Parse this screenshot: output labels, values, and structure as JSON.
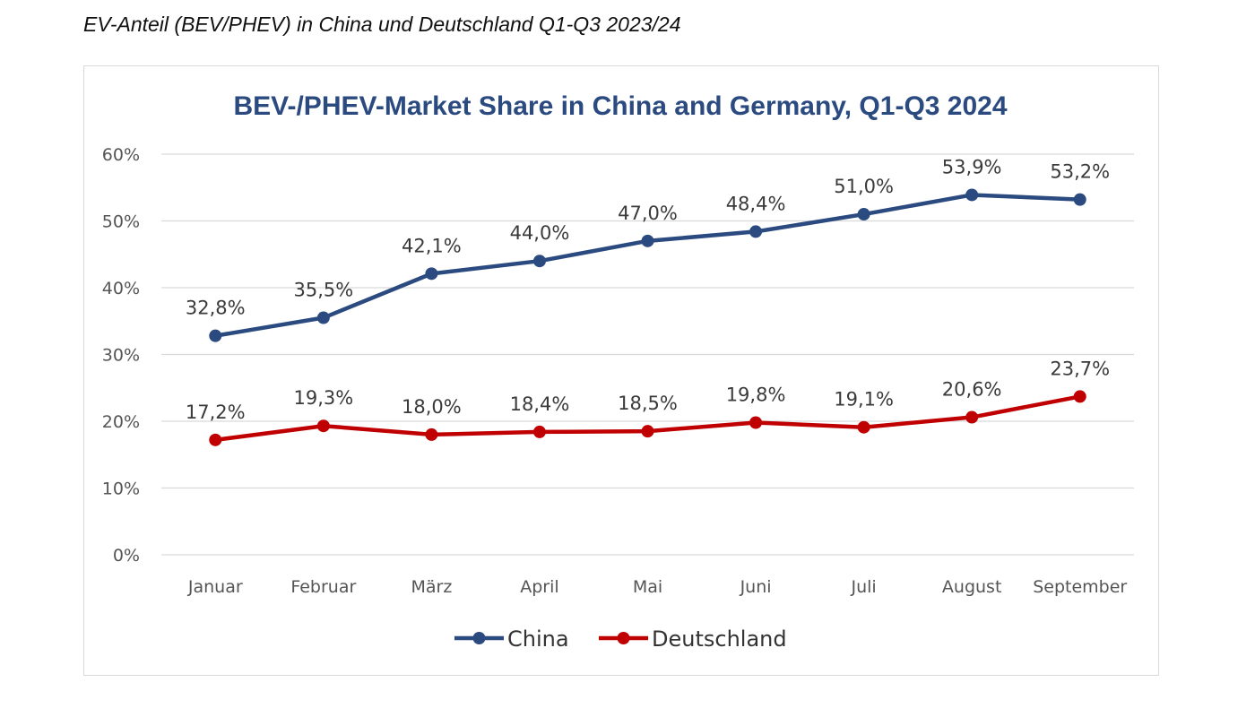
{
  "caption": "EV-Anteil (BEV/PHEV) in China und Deutschland Q1-Q3 2023/24",
  "colors": {
    "china": "#2a4a80",
    "deutschland": "#c00000",
    "grid": "#d9d9d9",
    "title": "#2a4a80"
  },
  "chart_data": {
    "type": "line",
    "title": "BEV-/PHEV-Market Share in China and Germany, Q1-Q3 2024",
    "xlabel": "",
    "ylabel": "",
    "categories": [
      "Januar",
      "Februar",
      "März",
      "April",
      "Mai",
      "Juni",
      "Juli",
      "August",
      "September"
    ],
    "ylim": [
      0,
      60
    ],
    "yticks": [
      0,
      10,
      20,
      30,
      40,
      50,
      60
    ],
    "ytick_labels": [
      "0%",
      "10%",
      "20%",
      "30%",
      "40%",
      "50%",
      "60%"
    ],
    "grid": true,
    "legend": "bottom",
    "series": [
      {
        "name": "China",
        "color": "#2a4a80",
        "values": [
          32.8,
          35.5,
          42.1,
          44.0,
          47.0,
          48.4,
          51.0,
          53.9,
          53.2
        ],
        "labels": [
          "32,8%",
          "35,5%",
          "42,1%",
          "44,0%",
          "47,0%",
          "48,4%",
          "51,0%",
          "53,9%",
          "53,2%"
        ]
      },
      {
        "name": "Deutschland",
        "color": "#c00000",
        "values": [
          17.2,
          19.3,
          18.0,
          18.4,
          18.5,
          19.8,
          19.1,
          20.6,
          23.7
        ],
        "labels": [
          "17,2%",
          "19,3%",
          "18,0%",
          "18,4%",
          "18,5%",
          "19,8%",
          "19,1%",
          "20,6%",
          "23,7%"
        ]
      }
    ]
  }
}
